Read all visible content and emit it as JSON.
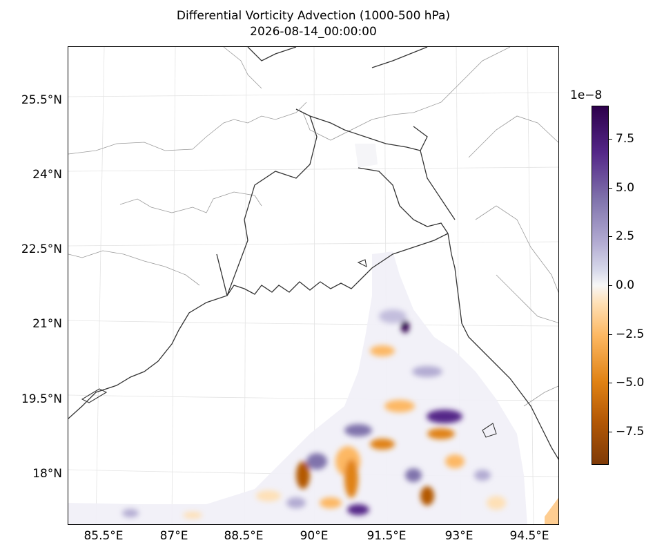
{
  "title": {
    "line1": "Differential Vorticity Advection (1000-500 hPa)",
    "line2": "2026-08-14_00:00:00"
  },
  "axes": {
    "lat_labels": [
      "25.5°N",
      "24°N",
      "22.5°N",
      "21°N",
      "19.5°N",
      "18°N"
    ],
    "lon_labels": [
      "85.5°E",
      "87°E",
      "88.5°E",
      "90°E",
      "91.5°E",
      "93°E",
      "94.5°E"
    ]
  },
  "colorbar": {
    "scale_label": "1e−8",
    "tick_labels": [
      "7.5",
      "5.0",
      "2.5",
      "0.0",
      "−2.5",
      "−5.0",
      "−7.5"
    ],
    "tick_values": [
      7.5,
      5.0,
      2.5,
      0.0,
      -2.5,
      -5.0,
      -7.5
    ],
    "range": [
      -9.2,
      9.2
    ],
    "colormap": "PuOr",
    "top_color": "#2d004b",
    "bottom_color": "#7f3b08"
  },
  "map": {
    "extent_lon": [
      84.5,
      95.0
    ],
    "extent_lat": [
      17.0,
      26.5
    ],
    "coastline_color": "#333333",
    "border_color": "#999999",
    "gridline_color": "#e3e3e3"
  }
}
